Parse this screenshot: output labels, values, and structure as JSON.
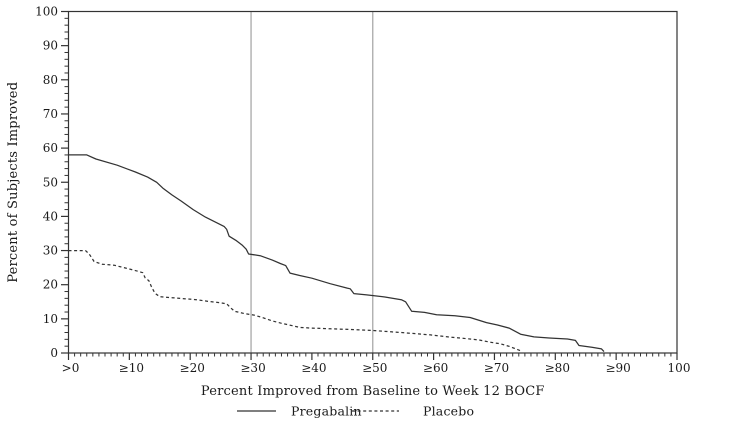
{
  "chart_data": {
    "type": "line",
    "title": "",
    "xlabel": "Percent Improved from Baseline to Week 12 BOCF",
    "ylabel": "Percent of Subjects Improved",
    "xlim": [
      0,
      100
    ],
    "ylim": [
      0,
      100
    ],
    "grid": false,
    "legend_position": "bottom-center",
    "x_tick_values": [
      0,
      10,
      20,
      30,
      40,
      50,
      60,
      70,
      80,
      90,
      100
    ],
    "x_tick_labels": [
      ">0",
      "≥10",
      "≥20",
      "≥30",
      "≥40",
      "≥50",
      "≥60",
      "≥70",
      "≥80",
      "≥90",
      "100"
    ],
    "y_tick_values": [
      0,
      10,
      20,
      30,
      40,
      50,
      60,
      70,
      80,
      90,
      100
    ],
    "y_tick_labels": [
      "0",
      "10",
      "20",
      "30",
      "40",
      "50",
      "60",
      "70",
      "80",
      "90",
      "100"
    ],
    "x_minor_step": 1,
    "y_minor_step": 2,
    "reference_lines_x": [
      30,
      50
    ],
    "colors": {
      "series": "#333333",
      "frame": "#333333",
      "reference_line": "#a9a9a9",
      "text": "#1a1a1a",
      "background": "#ffffff"
    },
    "series": [
      {
        "name": "Pregabalin",
        "style": "solid",
        "points": [
          [
            0,
            58
          ],
          [
            3,
            58
          ],
          [
            4.5,
            56.8
          ],
          [
            8,
            55
          ],
          [
            11,
            53
          ],
          [
            13,
            51.5
          ],
          [
            14.5,
            50
          ],
          [
            15.5,
            48.3
          ],
          [
            17,
            46.3
          ],
          [
            18.5,
            44.5
          ],
          [
            20.5,
            42
          ],
          [
            22.5,
            39.8
          ],
          [
            24.5,
            38
          ],
          [
            25.6,
            37
          ],
          [
            26,
            36.2
          ],
          [
            26.4,
            34.2
          ],
          [
            27.5,
            33
          ],
          [
            28.6,
            31.5
          ],
          [
            29.2,
            30.4
          ],
          [
            29.6,
            29
          ],
          [
            31.5,
            28.5
          ],
          [
            33.5,
            27.2
          ],
          [
            34.8,
            26.2
          ],
          [
            35.7,
            25.6
          ],
          [
            36.4,
            23.4
          ],
          [
            38,
            22.7
          ],
          [
            40,
            21.9
          ],
          [
            43,
            20.3
          ],
          [
            45.8,
            19
          ],
          [
            46.3,
            18.8
          ],
          [
            46.9,
            17.4
          ],
          [
            49,
            17
          ],
          [
            52,
            16.4
          ],
          [
            54.7,
            15.6
          ],
          [
            55.4,
            15
          ],
          [
            56.4,
            12.2
          ],
          [
            58.5,
            11.9
          ],
          [
            60.5,
            11.2
          ],
          [
            63.5,
            10.9
          ],
          [
            66,
            10.4
          ],
          [
            68.7,
            8.9
          ],
          [
            70.5,
            8.2
          ],
          [
            72.4,
            7.3
          ],
          [
            74.3,
            5.5
          ],
          [
            76.5,
            4.7
          ],
          [
            79,
            4.4
          ],
          [
            82,
            4.1
          ],
          [
            83.3,
            3.7
          ],
          [
            83.9,
            2.2
          ],
          [
            86,
            1.7
          ],
          [
            87.6,
            1.2
          ],
          [
            88,
            0.4
          ]
        ]
      },
      {
        "name": "Placebo",
        "style": "dashed",
        "points": [
          [
            0,
            30
          ],
          [
            2.8,
            30
          ],
          [
            3.4,
            29
          ],
          [
            4.2,
            26.8
          ],
          [
            5.5,
            26
          ],
          [
            7.5,
            25.7
          ],
          [
            10,
            24.6
          ],
          [
            11.5,
            23.9
          ],
          [
            12.2,
            23.5
          ],
          [
            12.6,
            22
          ],
          [
            13.2,
            21.2
          ],
          [
            13.6,
            19.5
          ],
          [
            14.2,
            17.5
          ],
          [
            15,
            16.5
          ],
          [
            17,
            16.2
          ],
          [
            19,
            15.9
          ],
          [
            21,
            15.6
          ],
          [
            23,
            15.1
          ],
          [
            25,
            14.7
          ],
          [
            26,
            14.4
          ],
          [
            26.6,
            13.3
          ],
          [
            27.3,
            12.2
          ],
          [
            29,
            11.5
          ],
          [
            30.5,
            11.1
          ],
          [
            32,
            10.3
          ],
          [
            33.5,
            9.4
          ],
          [
            35,
            8.7
          ],
          [
            36.8,
            8
          ],
          [
            38,
            7.5
          ],
          [
            40,
            7.3
          ],
          [
            43,
            7.1
          ],
          [
            46,
            6.9
          ],
          [
            50,
            6.6
          ],
          [
            53,
            6.2
          ],
          [
            55.5,
            5.9
          ],
          [
            57.5,
            5.6
          ],
          [
            59.5,
            5.3
          ],
          [
            61.5,
            4.9
          ],
          [
            63.5,
            4.5
          ],
          [
            65.5,
            4.2
          ],
          [
            67.5,
            3.8
          ],
          [
            69.5,
            3.1
          ],
          [
            71,
            2.7
          ],
          [
            72.5,
            1.9
          ],
          [
            73.8,
            1
          ],
          [
            74.5,
            0.5
          ]
        ]
      }
    ]
  }
}
